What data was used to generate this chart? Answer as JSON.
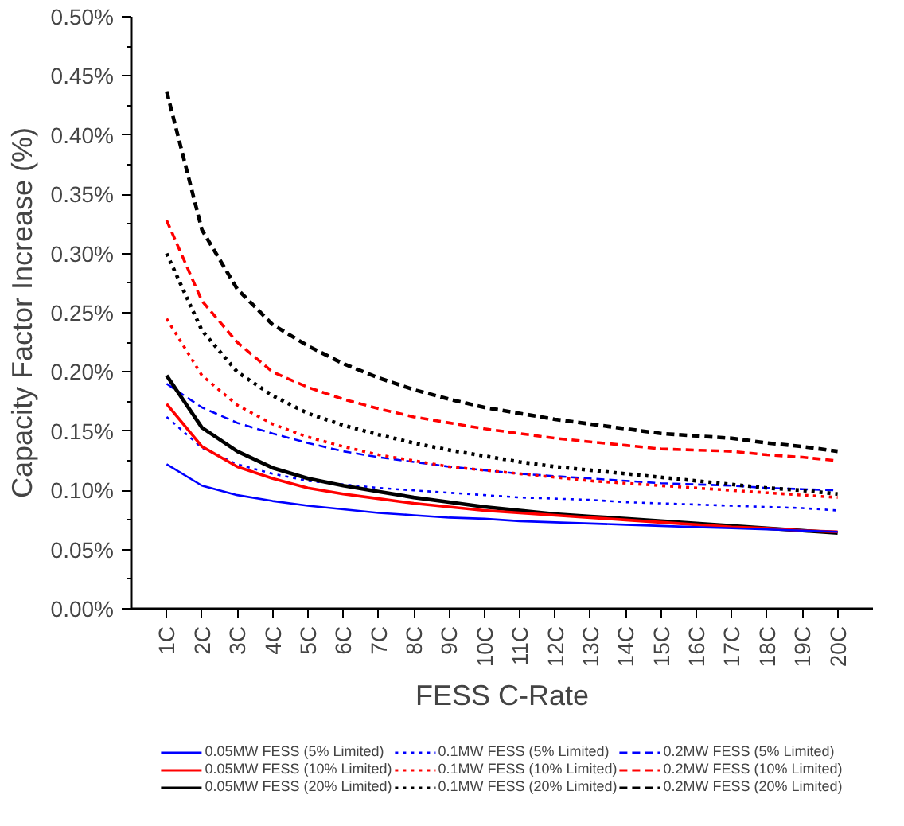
{
  "chart_data": {
    "type": "line",
    "xlabel": "FESS C-Rate",
    "ylabel": "Capacity Factor Increase (%)",
    "categories": [
      "1C",
      "2C",
      "3C",
      "4C",
      "5C",
      "6C",
      "7C",
      "8C",
      "9C",
      "10C",
      "11C",
      "12C",
      "13C",
      "14C",
      "15C",
      "16C",
      "17C",
      "18C",
      "19C",
      "20C"
    ],
    "ylim": [
      0,
      0.5
    ],
    "yticks": [
      {
        "value": 0,
        "label": "0.00%"
      },
      {
        "value": 0.05,
        "label": "0.05%"
      },
      {
        "value": 0.1,
        "label": "0.10%"
      },
      {
        "value": 0.15,
        "label": "0.15%"
      },
      {
        "value": 0.2,
        "label": "0.20%"
      },
      {
        "value": 0.25,
        "label": "0.25%"
      },
      {
        "value": 0.3,
        "label": "0.30%"
      },
      {
        "value": 0.35,
        "label": "0.35%"
      },
      {
        "value": 0.4,
        "label": "0.40%"
      },
      {
        "value": 0.45,
        "label": "0.45%"
      },
      {
        "value": 0.5,
        "label": "0.50%"
      }
    ],
    "grid": false,
    "legend": "bottom",
    "marker": "none",
    "series": [
      {
        "name": "0.05MW FESS (5% Limited)",
        "color": "#0000ff",
        "line_style": "solid",
        "values": [
          0.122,
          0.104,
          0.096,
          0.091,
          0.087,
          0.084,
          0.081,
          0.079,
          0.077,
          0.076,
          0.074,
          0.073,
          0.072,
          0.071,
          0.07,
          0.069,
          0.068,
          0.067,
          0.066,
          0.065
        ]
      },
      {
        "name": "0.05MW FESS (10% Limited)",
        "color": "#ff0000",
        "line_style": "solid",
        "values": [
          0.173,
          0.137,
          0.12,
          0.11,
          0.102,
          0.097,
          0.093,
          0.089,
          0.086,
          0.083,
          0.081,
          0.079,
          0.077,
          0.075,
          0.073,
          0.071,
          0.069,
          0.068,
          0.066,
          0.065
        ]
      },
      {
        "name": "0.05MW FESS (20% Limited)",
        "color": "#000000",
        "line_style": "solid",
        "values": [
          0.197,
          0.153,
          0.133,
          0.119,
          0.11,
          0.104,
          0.099,
          0.094,
          0.09,
          0.086,
          0.083,
          0.08,
          0.078,
          0.076,
          0.074,
          0.072,
          0.07,
          0.068,
          0.066,
          0.064
        ]
      },
      {
        "name": "0.1MW FESS (5% Limited)",
        "color": "#0000ff",
        "line_style": "dotted",
        "values": [
          0.162,
          0.136,
          0.122,
          0.114,
          0.108,
          0.105,
          0.102,
          0.1,
          0.098,
          0.096,
          0.094,
          0.093,
          0.092,
          0.09,
          0.089,
          0.088,
          0.087,
          0.086,
          0.085,
          0.083
        ]
      },
      {
        "name": "0.1MW FESS (10% Limited)",
        "color": "#ff0000",
        "line_style": "dotted",
        "values": [
          0.245,
          0.197,
          0.172,
          0.156,
          0.145,
          0.137,
          0.13,
          0.125,
          0.12,
          0.117,
          0.114,
          0.111,
          0.108,
          0.106,
          0.104,
          0.102,
          0.1,
          0.098,
          0.096,
          0.094
        ]
      },
      {
        "name": "0.1MW FESS (20% Limited)",
        "color": "#000000",
        "line_style": "dotted",
        "values": [
          0.3,
          0.235,
          0.2,
          0.18,
          0.165,
          0.155,
          0.147,
          0.14,
          0.134,
          0.129,
          0.124,
          0.12,
          0.117,
          0.114,
          0.111,
          0.108,
          0.105,
          0.102,
          0.1,
          0.097
        ]
      },
      {
        "name": "0.2MW FESS (5% Limited)",
        "color": "#0000ff",
        "line_style": "dashed",
        "values": [
          0.19,
          0.17,
          0.157,
          0.148,
          0.14,
          0.133,
          0.128,
          0.124,
          0.12,
          0.117,
          0.114,
          0.112,
          0.11,
          0.108,
          0.106,
          0.105,
          0.104,
          0.102,
          0.101,
          0.1
        ]
      },
      {
        "name": "0.2MW FESS (10% Limited)",
        "color": "#ff0000",
        "line_style": "dashed",
        "values": [
          0.328,
          0.26,
          0.225,
          0.2,
          0.187,
          0.177,
          0.169,
          0.162,
          0.157,
          0.152,
          0.148,
          0.144,
          0.141,
          0.138,
          0.135,
          0.134,
          0.133,
          0.13,
          0.128,
          0.125
        ]
      },
      {
        "name": "0.2MW FESS (20% Limited)",
        "color": "#000000",
        "line_style": "dashed",
        "values": [
          0.437,
          0.32,
          0.27,
          0.24,
          0.222,
          0.207,
          0.195,
          0.185,
          0.177,
          0.17,
          0.165,
          0.16,
          0.156,
          0.152,
          0.148,
          0.146,
          0.144,
          0.14,
          0.137,
          0.133
        ]
      }
    ]
  }
}
